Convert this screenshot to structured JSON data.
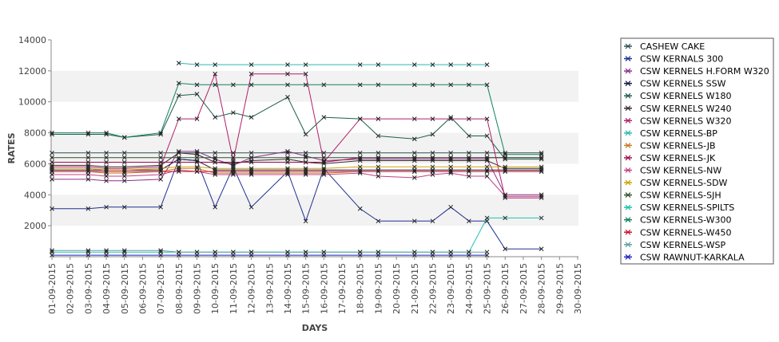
{
  "chart_data": {
    "type": "line",
    "title": "",
    "xlabel": "DAYS",
    "ylabel": "RATES",
    "ylim": [
      0,
      14000
    ],
    "yticks": [
      2000,
      4000,
      6000,
      8000,
      10000,
      12000,
      14000
    ],
    "grid": "horizontal alternating bands",
    "legend_position": "right",
    "marker": "x",
    "x": [
      "01-09-2015",
      "02-09-2015",
      "03-09-2015",
      "04-09-2015",
      "05-09-2015",
      "06-09-2015",
      "07-09-2015",
      "08-09-2015",
      "09-09-2015",
      "10-09-2015",
      "11-09-2015",
      "12-09-2015",
      "13-09-2015",
      "14-09-2015",
      "15-09-2015",
      "16-09-2015",
      "17-09-2015",
      "18-09-2015",
      "19-09-2015",
      "20-09-2015",
      "21-09-2015",
      "22-09-2015",
      "23-09-2015",
      "24-09-2015",
      "25-09-2015",
      "26-09-2015",
      "27-09-2015",
      "28-09-2015",
      "29-09-2015",
      "30-09-2015"
    ],
    "series": [
      {
        "name": "CASHEW CAKE",
        "color": "#2f4f4f",
        "values": [
          6700,
          null,
          6700,
          6700,
          6700,
          null,
          6700,
          6700,
          6700,
          6700,
          6700,
          6700,
          null,
          6700,
          6700,
          6700,
          null,
          6700,
          6700,
          null,
          6700,
          6700,
          6700,
          6700,
          6700,
          6700,
          null,
          6700,
          null,
          null
        ]
      },
      {
        "name": "CSW KERNALS 300",
        "color": "#1f2f8f",
        "values": [
          3100,
          null,
          3100,
          3200,
          3200,
          null,
          3200,
          6300,
          6200,
          3200,
          5800,
          3200,
          null,
          5500,
          2300,
          5700,
          null,
          3100,
          2300,
          null,
          2300,
          2300,
          3200,
          2300,
          2300,
          500,
          null,
          500,
          null,
          null
        ]
      },
      {
        "name": "CSW KERNELS H.FORM W320",
        "color": "#8b2f8b",
        "values": [
          5000,
          null,
          5000,
          4900,
          4900,
          null,
          5000,
          6800,
          6800,
          6300,
          5900,
          6400,
          null,
          6800,
          6500,
          6200,
          null,
          6300,
          6300,
          null,
          6300,
          6300,
          6300,
          6300,
          6300,
          4000,
          null,
          4000,
          null,
          null
        ]
      },
      {
        "name": "CSW KERNELS SSW",
        "color": "#1a1a4a",
        "values": [
          5600,
          null,
          5600,
          5600,
          5600,
          null,
          5600,
          6300,
          6200,
          5600,
          5600,
          5600,
          null,
          5600,
          5600,
          5600,
          null,
          5600,
          5600,
          null,
          5600,
          5600,
          5600,
          5600,
          5600,
          5600,
          null,
          5600,
          null,
          null
        ]
      },
      {
        "name": "CSW KERNELS W180",
        "color": "#1e5e4e",
        "values": [
          7900,
          null,
          7900,
          7900,
          7700,
          null,
          7900,
          10400,
          10500,
          9000,
          9300,
          9000,
          null,
          10300,
          7900,
          9000,
          null,
          8900,
          7800,
          null,
          7600,
          7900,
          9000,
          7800,
          7800,
          6300,
          null,
          6300,
          null,
          null
        ]
      },
      {
        "name": "CSW KERNELS W240",
        "color": "#3a2a2a",
        "values": [
          5900,
          null,
          5900,
          5800,
          5800,
          null,
          5900,
          6700,
          6600,
          6100,
          6000,
          6200,
          null,
          6300,
          6100,
          6000,
          null,
          6200,
          6200,
          null,
          6200,
          6200,
          6200,
          6200,
          6200,
          5700,
          null,
          5700,
          null,
          null
        ]
      },
      {
        "name": "CSW KERNELS W320",
        "color": "#b0206a",
        "values": [
          5800,
          null,
          5800,
          5700,
          5700,
          null,
          5800,
          8900,
          8900,
          11800,
          6200,
          11800,
          null,
          11800,
          11800,
          6100,
          null,
          8900,
          8900,
          null,
          8900,
          8900,
          8900,
          8900,
          8900,
          3800,
          null,
          3800,
          null,
          null
        ]
      },
      {
        "name": "CSW KERNELS-BP",
        "color": "#2fb8b0",
        "values": [
          null,
          null,
          null,
          null,
          null,
          null,
          null,
          12500,
          12400,
          12400,
          null,
          12400,
          null,
          12400,
          12400,
          null,
          null,
          12400,
          12400,
          null,
          12400,
          12400,
          12400,
          12400,
          12400,
          null,
          null,
          null,
          null,
          null
        ]
      },
      {
        "name": "CSW KERNELS-JB",
        "color": "#c87a20",
        "values": [
          5500,
          null,
          5500,
          5400,
          5400,
          null,
          5500,
          5700,
          5700,
          5400,
          5400,
          5400,
          null,
          5400,
          5400,
          5400,
          null,
          5500,
          5500,
          null,
          5500,
          5500,
          5500,
          5500,
          5500,
          5500,
          null,
          5500,
          null,
          null
        ]
      },
      {
        "name": "CSW KERNELS-JK",
        "color": "#a01050",
        "values": [
          6100,
          null,
          6100,
          6100,
          6100,
          null,
          6100,
          6100,
          6100,
          6100,
          6100,
          6100,
          null,
          6100,
          6100,
          6100,
          null,
          6400,
          6400,
          null,
          6400,
          6400,
          6400,
          6400,
          6400,
          6400,
          null,
          6400,
          null,
          null
        ]
      },
      {
        "name": "CSW KERNELS-NW",
        "color": "#c04080",
        "values": [
          5300,
          null,
          5300,
          5200,
          5200,
          null,
          5300,
          5600,
          5500,
          5300,
          5300,
          5300,
          null,
          5300,
          5300,
          5300,
          null,
          5400,
          5200,
          null,
          5100,
          5300,
          5400,
          5200,
          5200,
          3900,
          null,
          3900,
          null,
          null
        ]
      },
      {
        "name": "CSW KERNELS-SDW",
        "color": "#d0a000",
        "values": [
          5700,
          null,
          5700,
          5600,
          5600,
          null,
          5700,
          5800,
          5800,
          5700,
          5700,
          5700,
          null,
          5700,
          5700,
          5700,
          null,
          5800,
          5800,
          null,
          5800,
          5800,
          5800,
          5800,
          5800,
          5800,
          null,
          5800,
          null,
          null
        ]
      },
      {
        "name": "CSW KERNELS-SJH",
        "color": "#305030",
        "values": [
          6400,
          null,
          6400,
          6400,
          6400,
          null,
          6400,
          6400,
          6400,
          6400,
          6400,
          6400,
          null,
          6400,
          6400,
          6400,
          null,
          6400,
          6400,
          null,
          6400,
          6400,
          6400,
          6400,
          6400,
          6400,
          null,
          6400,
          null,
          null
        ]
      },
      {
        "name": "CSW KERNELS-SPILTS",
        "color": "#20c0b0",
        "values": [
          300,
          null,
          300,
          300,
          300,
          null,
          300,
          300,
          300,
          300,
          300,
          300,
          null,
          300,
          300,
          300,
          null,
          300,
          300,
          null,
          300,
          300,
          300,
          300,
          2500,
          2500,
          null,
          2500,
          null,
          null
        ]
      },
      {
        "name": "CSW KERNELS-W300",
        "color": "#108060",
        "values": [
          8000,
          null,
          8000,
          8000,
          7700,
          null,
          8000,
          11200,
          11100,
          11100,
          11100,
          11100,
          null,
          11100,
          11100,
          11100,
          null,
          11100,
          11100,
          null,
          11100,
          11100,
          11100,
          11100,
          11100,
          6600,
          null,
          6600,
          null,
          null
        ]
      },
      {
        "name": "CSW KERNELS-W450",
        "color": "#d01030",
        "values": [
          5500,
          null,
          5500,
          5500,
          5500,
          null,
          5500,
          5500,
          5500,
          5500,
          5500,
          5500,
          null,
          5500,
          5500,
          5500,
          null,
          5500,
          5500,
          null,
          5500,
          5500,
          5500,
          5500,
          5500,
          5500,
          null,
          5500,
          null,
          null
        ]
      },
      {
        "name": "CSW KERNELS-WSP",
        "color": "#60a0a0",
        "values": [
          400,
          null,
          400,
          400,
          400,
          null,
          400,
          300,
          300,
          300,
          300,
          300,
          null,
          300,
          300,
          300,
          null,
          300,
          300,
          null,
          300,
          300,
          300,
          300,
          300,
          null,
          null,
          null,
          null,
          null
        ]
      },
      {
        "name": "CSW RAWNUT-KARKALA",
        "color": "#2020c0",
        "values": [
          100,
          null,
          100,
          100,
          100,
          null,
          100,
          100,
          100,
          100,
          100,
          100,
          null,
          100,
          100,
          100,
          null,
          100,
          100,
          null,
          100,
          100,
          100,
          100,
          100,
          null,
          null,
          null,
          null,
          null
        ]
      }
    ]
  }
}
